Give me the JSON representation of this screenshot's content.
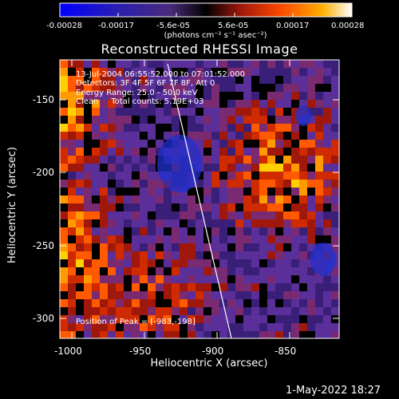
{
  "colorbar": {
    "tick_labels": [
      "-0.00028",
      "-0.00017",
      "-5.6e-05",
      "5.6e-05",
      "0.00017",
      "0.00028"
    ],
    "units": "(photons cm⁻² s⁻¹ asec⁻²)",
    "colors": [
      "#0000ff",
      "#3b1e9c",
      "#5a2a86",
      "#000000",
      "#a0180c",
      "#ff4a00",
      "#ffb000",
      "#ffffff"
    ]
  },
  "title": "Reconstructed RHESSI Image",
  "annotations": {
    "time": "13-Jul-2004 06:55:52.000 to 07:01:52.000",
    "detectors": "Detectors: 3F 4F 5F 6F 7F 8F, Att 0",
    "energy": "Energy Range: 25.0 - 50.0 keV",
    "clean": "Clean     Total counts: 5.19E+03",
    "peak": "Position of Peak = [-983,-198]"
  },
  "axes": {
    "xlabel": "Heliocentric X (arcsec)",
    "ylabel": "Heliocentric Y (arcsec)",
    "x_ticks": [
      "-1000",
      "-950",
      "-900",
      "-850"
    ],
    "y_ticks": [
      "-150",
      "-200",
      "-250",
      "-300"
    ],
    "xlim": [
      -1008,
      -815
    ],
    "ylim": [
      -315,
      -122
    ]
  },
  "footer": "1-May-2022 18:27"
}
